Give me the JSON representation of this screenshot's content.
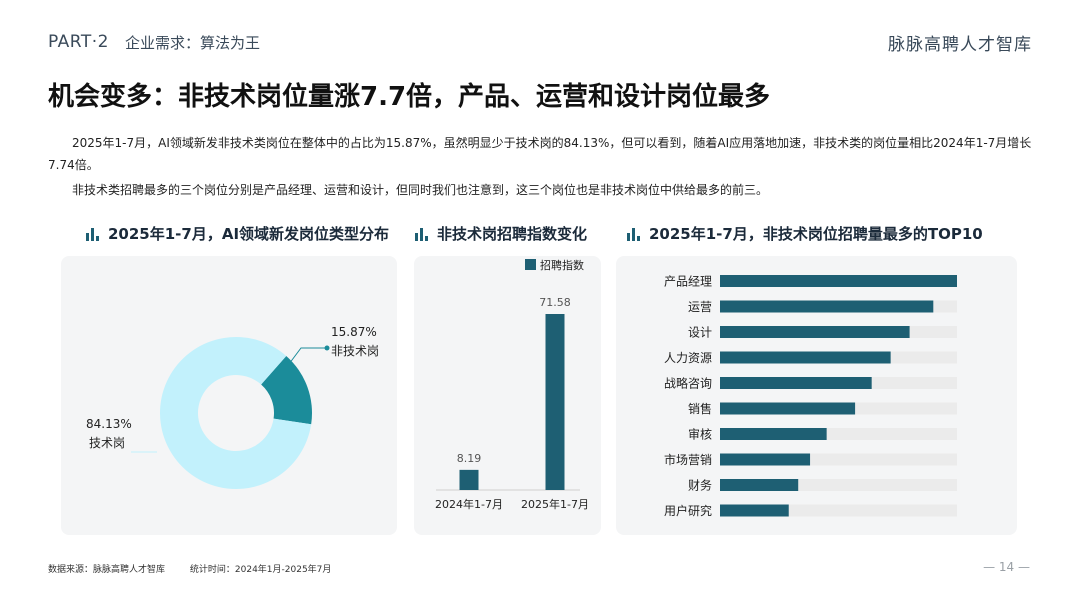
{
  "header": {
    "part": "PART·2",
    "subtitle": "企业需求：算法为王",
    "brand": "脉脉高聘人才智库"
  },
  "title": "机会变多：非技术岗位量涨7.7倍，产品、运营和设计岗位最多",
  "paragraphs": [
    "2025年1-7月，AI领域新发非技术类岗位在整体中的占比为15.87%，虽然明显少于技术岗的84.13%，但可以看到，随着AI应用落地加速，非技术类的岗位量相比2024年1-7月增长7.74倍。",
    "非技术类招聘最多的三个岗位分别是产品经理、运营和设计，但同时我们也注意到，这三个岗位也是非技术岗位中供给最多的前三。"
  ],
  "colors": {
    "accent": "#1e5f73",
    "donut_main": "#c2f1fc",
    "donut_small": "#1b8c9a",
    "track": "#ebebeb"
  },
  "chart_data": [
    {
      "type": "pie",
      "title": "2025年1-7月，AI领域新发岗位类型分布",
      "slices": [
        {
          "label": "非技术岗",
          "value": 15.87,
          "value_label": "15.87%"
        },
        {
          "label": "技术岗",
          "value": 84.13,
          "value_label": "84.13%"
        }
      ]
    },
    {
      "type": "bar",
      "title": "非技术岗招聘指数变化",
      "categories": [
        "2024年1-7月",
        "2025年1-7月"
      ],
      "series": [
        {
          "name": "招聘指数",
          "values": [
            8.19,
            71.58
          ]
        }
      ],
      "value_labels": [
        "8.19",
        "71.58"
      ],
      "legend": "top"
    },
    {
      "type": "bar",
      "orientation": "horizontal",
      "title": "2025年1-7月，非技术岗位招聘量最多的TOP10",
      "categories": [
        "产品经理",
        "运营",
        "设计",
        "人力资源",
        "战略咨询",
        "销售",
        "审核",
        "市场营销",
        "财务",
        "用户研究"
      ],
      "values": [
        1.0,
        0.9,
        0.8,
        0.72,
        0.64,
        0.57,
        0.45,
        0.38,
        0.33,
        0.29
      ],
      "xlim": [
        0,
        1
      ]
    }
  ],
  "footer": {
    "source": "数据来源：脉脉高聘人才智库",
    "period": "统计时间：2024年1月-2025年7月",
    "page": "— 14 —"
  }
}
